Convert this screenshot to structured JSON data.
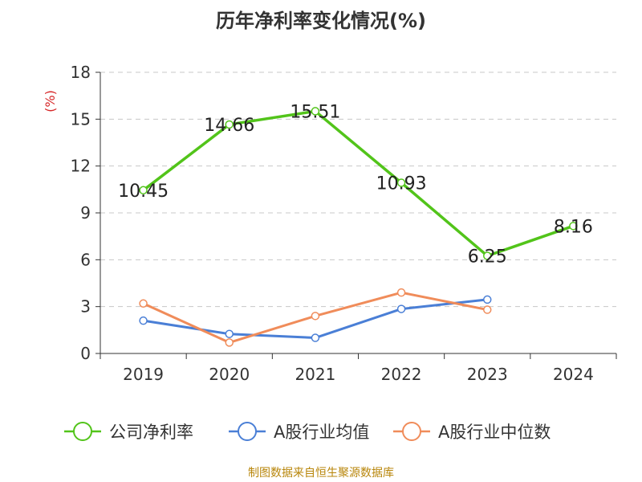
{
  "chart_data": {
    "type": "line",
    "title": "历年净利率变化情况(%)",
    "ylabel": "(%)",
    "xlabel": "",
    "categories": [
      "2019",
      "2020",
      "2021",
      "2022",
      "2023",
      "2024"
    ],
    "ylim": [
      0,
      18
    ],
    "yticks": [
      0,
      3,
      6,
      9,
      12,
      15,
      18
    ],
    "grid": true,
    "legend_position": "bottom",
    "series": [
      {
        "name": "公司净利率",
        "color": "#52c41a",
        "values": [
          10.45,
          14.66,
          15.51,
          10.93,
          6.25,
          8.16
        ],
        "labels": [
          "10.45",
          "14.66",
          "15.51",
          "10.93",
          "6.25",
          "8.16"
        ]
      },
      {
        "name": "A股行业均值",
        "color": "#4a7fd6",
        "values": [
          2.1,
          1.25,
          1.0,
          2.85,
          3.45,
          null
        ]
      },
      {
        "name": "A股行业中位数",
        "color": "#f08c5a",
        "values": [
          3.2,
          0.7,
          2.4,
          3.9,
          2.8,
          null
        ]
      }
    ]
  },
  "source": "制图数据来自恒生聚源数据库"
}
